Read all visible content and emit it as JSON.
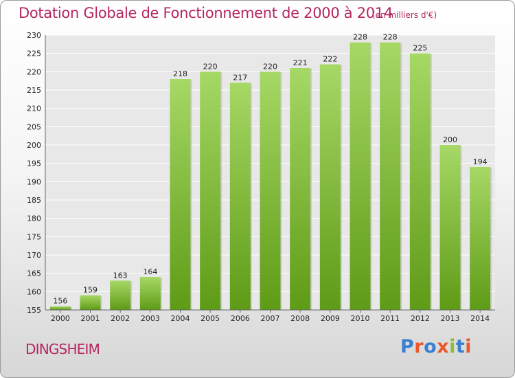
{
  "header": {
    "title": "Dotation Globale de Fonctionnement de 2000 à 2014",
    "unit": "(en milliers d'€)"
  },
  "footer": {
    "city": "DINGSHEIM"
  },
  "logo": {
    "text": "Proxiti",
    "colors": [
      "#3a7fd0",
      "#e8582b",
      "#3a7fd0",
      "#e8582b",
      "#8cbd35",
      "#3a7fd0",
      "#e8582b"
    ]
  },
  "colors": {
    "bar_light": "#a6d865",
    "bar_dark": "#5e9b16",
    "title": "#b5275f",
    "grid": "#ffffff"
  },
  "chart_data": {
    "type": "bar",
    "title": "Dotation Globale de Fonctionnement de 2000 à 2014",
    "subtitle": "(en milliers d'€)",
    "categories": [
      "2000",
      "2001",
      "2002",
      "2003",
      "2004",
      "2005",
      "2006",
      "2007",
      "2008",
      "2009",
      "2010",
      "2011",
      "2012",
      "2013",
      "2014"
    ],
    "values": [
      156,
      159,
      163,
      164,
      218,
      220,
      217,
      220,
      221,
      222,
      228,
      228,
      225,
      200,
      194
    ],
    "ylim": [
      155,
      230
    ],
    "yticks": [
      155,
      160,
      165,
      170,
      175,
      180,
      185,
      190,
      195,
      200,
      205,
      210,
      215,
      220,
      225,
      230
    ],
    "grid": true,
    "legend": "none"
  }
}
